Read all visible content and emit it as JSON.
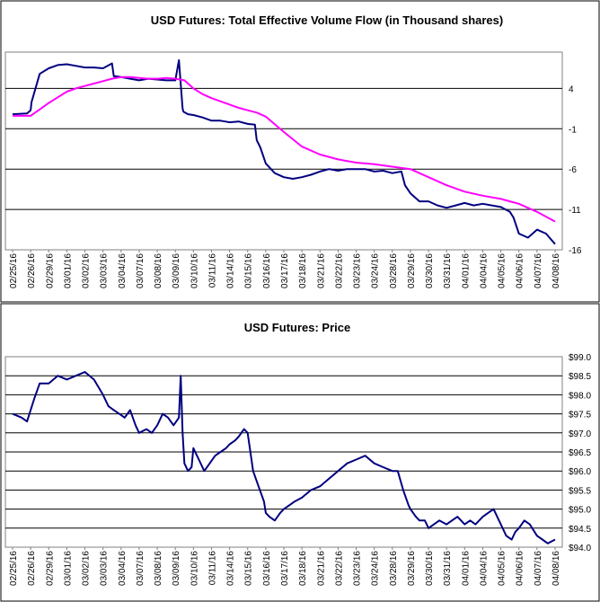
{
  "chart_data": [
    {
      "type": "line",
      "title": "USD Futures: Total Effective Volume Flow (in Thousand shares)",
      "x_tick_labels": [
        "02/25/16",
        "02/26/16",
        "02/29/16",
        "03/01/16",
        "03/02/16",
        "03/03/16",
        "03/04/16",
        "03/07/16",
        "03/08/16",
        "03/09/16",
        "03/10/16",
        "03/11/16",
        "03/14/16",
        "03/15/16",
        "03/16/16",
        "03/17/16",
        "03/18/16",
        "03/21/16",
        "03/22/16",
        "03/23/16",
        "03/24/16",
        "03/28/16",
        "03/29/16",
        "03/30/16",
        "03/31/16",
        "04/01/16",
        "04/04/16",
        "04/05/16",
        "04/06/16",
        "04/07/16",
        "04/08/16"
      ],
      "y_tick_labels": [
        "4",
        "-1",
        "-6",
        "-11",
        "-16"
      ],
      "ylim": [
        -16,
        8.5
      ],
      "y_axis_side": "right",
      "grid": "horizontal",
      "series": [
        {
          "color": "#000080",
          "x": [
            0,
            0.8,
            1.0,
            1.05,
            1.5,
            2.0,
            2.5,
            3.0,
            3.5,
            4.0,
            4.5,
            5.0,
            5.5,
            5.6,
            5.7,
            6.0,
            6.5,
            7.0,
            7.5,
            8.0,
            8.5,
            9.0,
            9.2,
            9.4,
            9.45,
            9.7,
            10.0,
            10.5,
            11.0,
            11.5,
            12.0,
            12.5,
            13.0,
            13.4,
            13.5,
            13.7,
            14.0,
            14.5,
            15.0,
            15.5,
            16.0,
            16.5,
            17.0,
            17.5,
            18.0,
            18.5,
            19.0,
            19.5,
            20.0,
            20.5,
            21.0,
            21.5,
            21.7,
            22.0,
            22.5,
            23.0,
            23.5,
            24.0,
            24.5,
            25.0,
            25.5,
            26.0,
            26.5,
            27.0,
            27.5,
            27.7,
            28.0,
            28.5,
            29.0,
            29.5,
            30.0
          ],
          "y": [
            0.8,
            0.9,
            1.3,
            2.3,
            5.8,
            6.5,
            6.9,
            7.0,
            6.8,
            6.6,
            6.6,
            6.5,
            7.1,
            5.5,
            5.5,
            5.4,
            5.2,
            5.0,
            5.2,
            5.1,
            5.0,
            5.0,
            7.5,
            1.5,
            1.1,
            0.8,
            0.7,
            0.4,
            0.0,
            0.0,
            -0.2,
            -0.1,
            -0.4,
            -0.5,
            -2.4,
            -3.3,
            -5.3,
            -6.5,
            -7.0,
            -7.2,
            -7.0,
            -6.7,
            -6.3,
            -6.0,
            -6.2,
            -6.0,
            -6.0,
            -6.0,
            -6.3,
            -6.2,
            -6.5,
            -6.3,
            -8.0,
            -9.0,
            -10.0,
            -10.0,
            -10.5,
            -10.8,
            -10.5,
            -10.2,
            -10.5,
            -10.3,
            -10.5,
            -10.7,
            -11.3,
            -12.0,
            -14.0,
            -14.5,
            -13.5,
            -14.0,
            -15.3
          ]
        },
        {
          "color": "#ff00ff",
          "x": [
            0,
            1.0,
            1.5,
            2.0,
            2.5,
            3.0,
            3.5,
            4.0,
            4.5,
            5.0,
            5.5,
            6.0,
            6.5,
            7.0,
            7.5,
            8.0,
            8.5,
            9.0,
            9.5,
            10.0,
            10.5,
            11.0,
            11.5,
            12.0,
            12.5,
            13.0,
            13.5,
            14.0,
            15.0,
            16.0,
            17.0,
            18.0,
            19.0,
            20.0,
            21.0,
            22.0,
            23.0,
            24.0,
            25.0,
            26.0,
            27.0,
            27.5,
            28.0,
            29.0,
            30.0
          ],
          "y": [
            0.6,
            0.6,
            1.4,
            2.2,
            2.9,
            3.6,
            4.0,
            4.3,
            4.6,
            4.9,
            5.2,
            5.4,
            5.4,
            5.3,
            5.2,
            5.2,
            5.3,
            5.2,
            5.0,
            4.0,
            3.3,
            2.8,
            2.4,
            2.0,
            1.6,
            1.3,
            1.0,
            0.5,
            -1.4,
            -3.2,
            -4.2,
            -4.8,
            -5.2,
            -5.4,
            -5.7,
            -6.0,
            -7.0,
            -8.0,
            -8.8,
            -9.3,
            -9.7,
            -10.0,
            -10.3,
            -11.3,
            -12.5
          ]
        }
      ]
    },
    {
      "type": "line",
      "title": "USD Futures: Price",
      "x_tick_labels": [
        "02/25/16",
        "02/26/16",
        "02/29/16",
        "03/01/16",
        "03/02/16",
        "03/03/16",
        "03/04/16",
        "03/07/16",
        "03/08/16",
        "03/09/16",
        "03/10/16",
        "03/11/16",
        "03/14/16",
        "03/15/16",
        "03/16/16",
        "03/17/16",
        "03/18/16",
        "03/21/16",
        "03/22/16",
        "03/23/16",
        "03/24/16",
        "03/28/16",
        "03/29/16",
        "03/30/16",
        "03/31/16",
        "04/01/16",
        "04/04/16",
        "04/05/16",
        "04/06/16",
        "04/07/16",
        "04/08/16"
      ],
      "y_tick_labels": [
        "$99.0",
        "$98.5",
        "$98.0",
        "$97.5",
        "$97.0",
        "$96.5",
        "$96.0",
        "$95.5",
        "$95.0",
        "$94.5",
        "$94.0"
      ],
      "ylim": [
        94.0,
        99.0
      ],
      "y_axis_side": "right",
      "grid": "horizontal",
      "series": [
        {
          "color": "#000080",
          "x": [
            0,
            0.5,
            0.8,
            1.0,
            1.2,
            1.5,
            2.0,
            2.5,
            3.0,
            3.5,
            4.0,
            4.5,
            5.0,
            5.3,
            5.6,
            5.9,
            6.2,
            6.5,
            6.8,
            7.0,
            7.4,
            7.7,
            8.0,
            8.3,
            8.6,
            8.9,
            9.2,
            9.3,
            9.4,
            9.5,
            9.7,
            9.9,
            10.0,
            10.3,
            10.6,
            10.9,
            11.2,
            11.5,
            11.8,
            12.0,
            12.3,
            12.5,
            12.8,
            13.0,
            13.3,
            13.6,
            13.9,
            14.0,
            14.2,
            14.5,
            14.8,
            15.0,
            15.3,
            15.6,
            16.0,
            16.5,
            17.0,
            17.5,
            18.0,
            18.5,
            19.0,
            19.5,
            20.0,
            20.5,
            21.0,
            21.3,
            21.6,
            21.9,
            22.0,
            22.3,
            22.5,
            22.8,
            23.0,
            23.3,
            23.6,
            24.0,
            24.3,
            24.6,
            25.0,
            25.3,
            25.6,
            26.0,
            26.3,
            26.6,
            27.0,
            27.3,
            27.6,
            27.8,
            28.0,
            28.3,
            28.6,
            29.0,
            29.3,
            29.6,
            30.0
          ],
          "y": [
            97.5,
            97.4,
            97.3,
            97.6,
            97.9,
            98.3,
            98.3,
            98.5,
            98.4,
            98.5,
            98.6,
            98.4,
            98.0,
            97.7,
            97.6,
            97.5,
            97.4,
            97.6,
            97.2,
            97.0,
            97.1,
            97.0,
            97.2,
            97.5,
            97.4,
            97.2,
            97.4,
            98.5,
            97.0,
            96.2,
            96.0,
            96.1,
            96.6,
            96.3,
            96.0,
            96.2,
            96.4,
            96.5,
            96.6,
            96.7,
            96.8,
            96.9,
            97.1,
            97.0,
            96.0,
            95.6,
            95.2,
            94.9,
            94.8,
            94.7,
            94.9,
            95.0,
            95.1,
            95.2,
            95.3,
            95.5,
            95.6,
            95.8,
            96.0,
            96.2,
            96.3,
            96.4,
            96.2,
            96.1,
            96.0,
            96.0,
            95.5,
            95.1,
            95.0,
            94.8,
            94.7,
            94.7,
            94.5,
            94.6,
            94.7,
            94.6,
            94.7,
            94.8,
            94.6,
            94.7,
            94.6,
            94.8,
            94.9,
            95.0,
            94.6,
            94.3,
            94.2,
            94.4,
            94.5,
            94.7,
            94.6,
            94.3,
            94.2,
            94.1,
            94.2
          ]
        }
      ]
    }
  ]
}
